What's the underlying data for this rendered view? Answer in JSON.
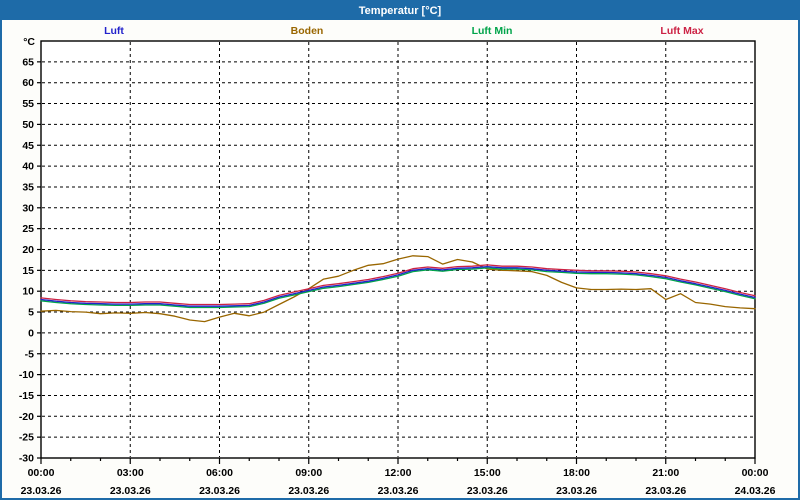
{
  "window": {
    "title": "Temperatur [°C]"
  },
  "colors": {
    "titlebar_bg": "#1e6ba8",
    "titlebar_text": "#ffffff",
    "window_border": "#1e6ba8",
    "background": "#fdfdfa",
    "plot_background": "#ffffff",
    "grid_color": "#000000",
    "axis_color": "#000000",
    "text_color": "#000000"
  },
  "chart_data": {
    "type": "line",
    "title": "Temperatur [°C]",
    "y_unit": "°C",
    "xlim": [
      0,
      24
    ],
    "ylim": [
      -30,
      70
    ],
    "y_label_min": -30,
    "y_label_max": 65,
    "y_tick_step": 5,
    "grid": "dashed",
    "legend_position": "top",
    "x_start_hour": 0,
    "x_step_hours": 0.5,
    "x_major_ticks_hours": [
      0,
      3,
      6,
      9,
      12,
      15,
      18,
      21,
      24
    ],
    "x_tick_times": [
      "00:00",
      "03:00",
      "06:00",
      "09:00",
      "12:00",
      "15:00",
      "18:00",
      "21:00",
      "00:00"
    ],
    "x_tick_dates": [
      "23.03.26",
      "23.03.26",
      "23.03.26",
      "23.03.26",
      "23.03.26",
      "23.03.26",
      "23.03.26",
      "23.03.26",
      "24.03.26"
    ],
    "series": [
      {
        "name": "Luft",
        "color": "#2222cc",
        "values": [
          8.0,
          7.6,
          7.3,
          7.1,
          7.0,
          6.9,
          6.9,
          7.0,
          7.0,
          6.7,
          6.4,
          6.4,
          6.4,
          6.5,
          6.6,
          7.4,
          8.6,
          9.4,
          10.2,
          11.0,
          11.4,
          11.9,
          12.4,
          13.1,
          13.9,
          15.0,
          15.4,
          15.1,
          15.5,
          15.6,
          15.9,
          15.6,
          15.6,
          15.4,
          15.0,
          14.8,
          14.6,
          14.5,
          14.5,
          14.4,
          14.2,
          13.8,
          13.3,
          12.5,
          11.8,
          11.0,
          10.2,
          9.3,
          8.5
        ]
      },
      {
        "name": "Boden",
        "color": "#996600",
        "values": [
          5.2,
          5.4,
          5.1,
          5.0,
          4.6,
          4.8,
          4.7,
          4.9,
          4.6,
          4.0,
          3.1,
          2.7,
          3.8,
          4.7,
          4.1,
          5.0,
          6.8,
          8.6,
          10.6,
          12.9,
          13.6,
          15.0,
          16.2,
          16.6,
          17.7,
          18.5,
          18.3,
          16.5,
          17.6,
          17.0,
          15.3,
          15.0,
          14.9,
          14.7,
          13.8,
          12.1,
          10.8,
          10.4,
          10.4,
          10.5,
          10.4,
          10.6,
          8.0,
          9.4,
          7.3,
          6.9,
          6.3,
          6.0,
          5.8
        ]
      },
      {
        "name": "Luft Min",
        "color": "#00a44a",
        "values": [
          7.7,
          7.3,
          7.0,
          6.8,
          6.7,
          6.6,
          6.6,
          6.7,
          6.7,
          6.4,
          6.1,
          6.1,
          6.1,
          6.2,
          6.3,
          7.1,
          8.3,
          9.1,
          9.9,
          10.7,
          11.1,
          11.6,
          12.1,
          12.8,
          13.6,
          14.7,
          15.1,
          14.8,
          15.2,
          15.3,
          15.6,
          15.3,
          15.3,
          15.1,
          14.7,
          14.5,
          14.3,
          14.2,
          14.2,
          14.1,
          13.9,
          13.5,
          13.0,
          12.2,
          11.5,
          10.7,
          9.9,
          9.0,
          8.2
        ]
      },
      {
        "name": "Luft Max",
        "color": "#cc2244",
        "values": [
          8.4,
          8.0,
          7.7,
          7.5,
          7.4,
          7.3,
          7.3,
          7.4,
          7.4,
          7.1,
          6.8,
          6.8,
          6.8,
          6.9,
          7.0,
          7.8,
          9.0,
          9.8,
          10.6,
          11.4,
          11.8,
          12.3,
          12.8,
          13.5,
          14.3,
          15.4,
          15.8,
          15.5,
          15.9,
          16.0,
          16.3,
          16.0,
          16.0,
          15.8,
          15.4,
          15.2,
          15.0,
          14.9,
          14.9,
          14.8,
          14.6,
          14.2,
          13.7,
          12.9,
          12.2,
          11.4,
          10.6,
          9.7,
          8.9
        ]
      }
    ]
  }
}
